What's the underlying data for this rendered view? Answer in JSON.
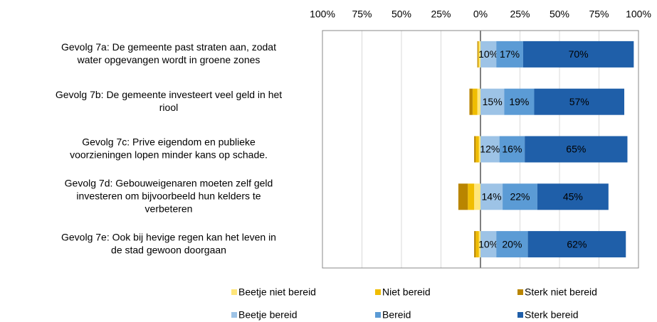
{
  "chart_data": {
    "type": "diverging_bar",
    "categories": [
      [
        "Gevolg 7a: De gemeente past straten aan, zodat",
        "water opgevangen wordt in groene zones"
      ],
      [
        "Gevolg 7b: De gemeente investeert veel geld in het",
        "riool"
      ],
      [
        "Gevolg 7c: Prive eigendom en publieke",
        "voorzieningen lopen minder kans op schade."
      ],
      [
        "Gevolg 7d: Gebouweigenaren moeten zelf geld",
        "investeren om bijvoorbeeld hun kelders te",
        "verbeteren"
      ],
      [
        "Gevolg 7e: Ook bij hevige regen kan het leven in",
        "de stad gewoon doorgaan"
      ]
    ],
    "series": [
      {
        "name": "Beetje niet bereid",
        "color": "#ffe67a",
        "values": [
          -1,
          -2,
          -1,
          -4,
          -1
        ]
      },
      {
        "name": "Niet bereid",
        "color": "#f0bd00",
        "values": [
          -0.5,
          -3,
          -2,
          -4,
          -2
        ]
      },
      {
        "name": "Sterk niet bereid",
        "color": "#b98500",
        "values": [
          -0.5,
          -2,
          -1,
          -6,
          -1
        ]
      },
      {
        "name": "Beetje bereid",
        "color": "#9dc3e6",
        "label_color": "#000000",
        "values": [
          10,
          15,
          12,
          14,
          10
        ],
        "value_labels": [
          "10%",
          "15%",
          "12%",
          "14%",
          "10%"
        ]
      },
      {
        "name": "Bereid",
        "color": "#5b9bd5",
        "label_color": "#000000",
        "values": [
          17,
          19,
          16,
          22,
          20
        ],
        "value_labels": [
          "17%",
          "19%",
          "16%",
          "22%",
          "20%"
        ]
      },
      {
        "name": "Sterk bereid",
        "color": "#1f5fa9",
        "label_color": "#ffffff",
        "values": [
          70,
          57,
          65,
          45,
          62
        ],
        "value_labels": [
          "70%",
          "57%",
          "65%",
          "45%",
          "62%"
        ]
      }
    ],
    "xlim": [
      -100,
      100
    ],
    "xticks": [
      {
        "value": -100,
        "label": "100%"
      },
      {
        "value": -75,
        "label": "75%"
      },
      {
        "value": -50,
        "label": "50%"
      },
      {
        "value": -25,
        "label": "25%"
      },
      {
        "value": 0,
        "label": "0%"
      },
      {
        "value": 25,
        "label": "25%"
      },
      {
        "value": 50,
        "label": "50%"
      },
      {
        "value": 75,
        "label": "75%"
      },
      {
        "value": 100,
        "label": "100%"
      }
    ],
    "grid": true,
    "legend": "bottom"
  }
}
